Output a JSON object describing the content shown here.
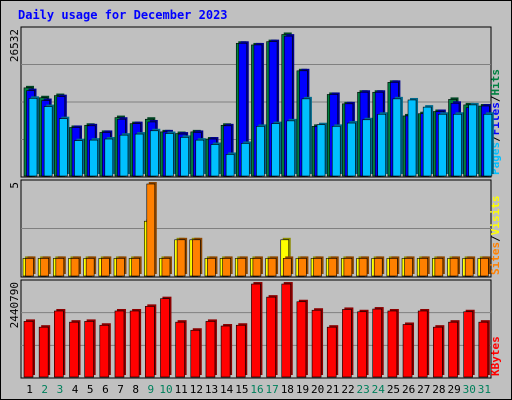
{
  "chart_data": {
    "type": "bar",
    "title": "Daily usage for December 2023",
    "categories": [
      "1",
      "2",
      "3",
      "4",
      "5",
      "6",
      "7",
      "8",
      "9",
      "10",
      "11",
      "12",
      "13",
      "14",
      "15",
      "16",
      "17",
      "18",
      "19",
      "20",
      "21",
      "22",
      "23",
      "24",
      "25",
      "26",
      "27",
      "28",
      "29",
      "30",
      "31"
    ],
    "weekend_days": [
      2,
      3,
      9,
      10,
      16,
      17,
      23,
      24,
      30,
      31
    ],
    "panels": [
      {
        "id": "requests",
        "max_label": "26532",
        "ylim": [
          0,
          26532
        ],
        "right_labels": [
          {
            "text": "Pages",
            "color": "#00c0ff"
          },
          {
            "text": "/",
            "color": "#000000"
          },
          {
            "text": "Files",
            "color": "#0000ff"
          },
          {
            "text": "/",
            "color": "#000000"
          },
          {
            "text": "Hits",
            "color": "#008040"
          }
        ],
        "series": [
          {
            "name": "Hits",
            "color": "#008040",
            "values": [
              16200,
              14400,
              14800,
              9000,
              9400,
              8100,
              10800,
              9700,
              10500,
              8200,
              7900,
              8200,
              6900,
              9400,
              24300,
              24000,
              24600,
              25900,
              19300,
              9200,
              15000,
              13300,
              15400,
              15400,
              17200,
              11100,
              11500,
              11900,
              14100,
              13100,
              12900
            ]
          },
          {
            "name": "Files",
            "color": "#0000ff",
            "values": [
              15700,
              13900,
              14600,
              9000,
              9300,
              8100,
              10500,
              9700,
              10000,
              8200,
              7800,
              8100,
              6900,
              9300,
              24300,
              24000,
              24600,
              25600,
              19300,
              9200,
              15000,
              13300,
              15400,
              15400,
              17200,
              11100,
              11500,
              11900,
              13400,
              12600,
              12900
            ]
          },
          {
            "name": "Pages",
            "color": "#00c0ff",
            "values": [
              14300,
              12800,
              10600,
              6600,
              6700,
              6900,
              7600,
              7800,
              8400,
              7900,
              7200,
              6700,
              5900,
              4100,
              6100,
              9200,
              9700,
              10200,
              14200,
              9500,
              9200,
              9800,
              10400,
              11400,
              14200,
              14000,
              12700,
              11400,
              11400,
              13100,
              11400
            ]
          }
        ]
      },
      {
        "id": "visitors",
        "max_label": "5",
        "ylim": [
          0,
          5
        ],
        "right_labels": [
          {
            "text": "Sites",
            "color": "#ff8000"
          },
          {
            "text": "/",
            "color": "#000000"
          },
          {
            "text": "Visits",
            "color": "#ffff00"
          }
        ],
        "series": [
          {
            "name": "Visits",
            "color": "#ffff00",
            "values": [
              1,
              1,
              1,
              1,
              1,
              1,
              1,
              1,
              3,
              1,
              2,
              2,
              1,
              1,
              1,
              1,
              1,
              2,
              1,
              1,
              1,
              1,
              1,
              1,
              1,
              1,
              1,
              1,
              1,
              1,
              1
            ]
          },
          {
            "name": "Sites",
            "color": "#ff8000",
            "values": [
              1,
              1,
              1,
              1,
              1,
              1,
              1,
              1,
              5,
              1,
              2,
              2,
              1,
              1,
              1,
              1,
              1,
              1,
              1,
              1,
              1,
              1,
              1,
              1,
              1,
              1,
              1,
              1,
              1,
              1,
              1
            ]
          }
        ]
      },
      {
        "id": "kbytes",
        "max_label": "2440790",
        "ylim": [
          0,
          2440790
        ],
        "right_labels": [
          {
            "text": "KBytes",
            "color": "#ff0000"
          }
        ],
        "series": [
          {
            "name": "KBytes",
            "color": "#ff0000",
            "values": [
              1470000,
              1320000,
              1740000,
              1450000,
              1470000,
              1370000,
              1740000,
              1740000,
              1860000,
              2060000,
              1450000,
              1240000,
              1470000,
              1350000,
              1370000,
              2440000,
              2100000,
              2440000,
              1980000,
              1760000,
              1320000,
              1780000,
              1720000,
              1790000,
              1740000,
              1390000,
              1740000,
              1320000,
              1450000,
              1720000,
              1450000
            ]
          }
        ]
      }
    ],
    "colors": {
      "background": "#c0c0c0",
      "plot_background": "#c0c0c0",
      "title": "#0000ff",
      "weekday_label": "#000000",
      "weekend_label": "#00805c"
    },
    "grid": true
  }
}
